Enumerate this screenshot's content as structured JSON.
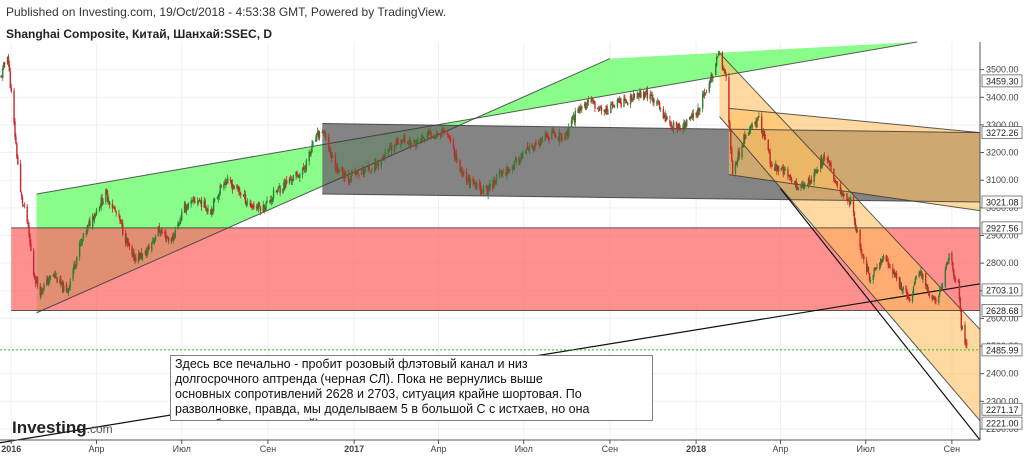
{
  "header": {
    "published": "Published on Investing.com, 19/Oct/2018 - 4:53:38 GMT, Powered by TradingView.",
    "symbol": "Shanghai Composite, Китай, Шанхай:SSEC, D"
  },
  "annotation": {
    "text": "Здесь все печально - пробит розовый флэтовый канал и низ\nдолгосрочного аптренда (черная СЛ). Пока не вернулись выше\nосновных сопротивлений 2628 и 2703, ситуация крайне шортовая. По\nразволновке, правда, мы доделываем 5 в большой С с истхаев, но она\nможет быть удлиненной)."
  },
  "logo": {
    "brand": "Investing",
    "suffix": ".com"
  },
  "colors": {
    "up_candle": "#2e7d32",
    "down_candle": "#c62828",
    "green_channel": "#7cfc7c",
    "pink_channel": "#ff6b6b",
    "gray_channel": "#6e6e6e",
    "orange_channel": "#ffc060",
    "last_price_line": "#22bb22"
  },
  "chart_data": {
    "type": "candlestick",
    "title": "Shanghai Composite, Китай, Шанхай:SSEC, D",
    "y_axis_position": "right",
    "ylim": [
      2160,
      3600
    ],
    "y_ticks": [
      2200,
      2300,
      2400,
      2500,
      2600,
      2700,
      2800,
      2900,
      3000,
      3100,
      3200,
      3300,
      3400,
      3500
    ],
    "y_tick_labels": [
      "2200.00",
      "2300.00",
      "2400.00",
      "2500.00",
      "2600.00",
      "2700.00",
      "2800.00",
      "2900.00",
      "3000.00",
      "3100.00",
      "3200.00",
      "3300.00",
      "3400.00",
      "3500.00"
    ],
    "x_range": [
      "2015-12-20",
      "2018-10-31"
    ],
    "x_ticks": [
      {
        "date": "2016-01-01",
        "label": "2016",
        "bold": true
      },
      {
        "date": "2016-04-01",
        "label": "Апр",
        "bold": false
      },
      {
        "date": "2016-07-01",
        "label": "Июл",
        "bold": false
      },
      {
        "date": "2016-10-01",
        "label": "Сен",
        "bold": false
      },
      {
        "date": "2017-01-01",
        "label": "2017",
        "bold": true
      },
      {
        "date": "2017-04-01",
        "label": "Апр",
        "bold": false
      },
      {
        "date": "2017-07-01",
        "label": "Июл",
        "bold": false
      },
      {
        "date": "2017-10-01",
        "label": "Сен",
        "bold": false
      },
      {
        "date": "2018-01-01",
        "label": "2018",
        "bold": true
      },
      {
        "date": "2018-04-01",
        "label": "Апр",
        "bold": false
      },
      {
        "date": "2018-07-01",
        "label": "Июл",
        "bold": false
      },
      {
        "date": "2018-10-01",
        "label": "Сен",
        "bold": false
      }
    ],
    "price_badges": [
      {
        "value": 3459.3,
        "label": "3459.30"
      },
      {
        "value": 3272.26,
        "label": "3272.26"
      },
      {
        "value": 3021.08,
        "label": "3021.08"
      },
      {
        "value": 2927.56,
        "label": "2927.56"
      },
      {
        "value": 2703.1,
        "label": "2703.10"
      },
      {
        "value": 2628.68,
        "label": "2628.68"
      },
      {
        "value": 2485.99,
        "label": "2485.99",
        "current": true
      },
      {
        "value": 2271.17,
        "label": "2271.17"
      },
      {
        "value": 2221.0,
        "label": "2221.00"
      }
    ],
    "price_path": [
      [
        "2015-12-21",
        3470
      ],
      [
        "2015-12-28",
        3560
      ],
      [
        "2016-01-04",
        3300
      ],
      [
        "2016-01-11",
        3050
      ],
      [
        "2016-01-18",
        2950
      ],
      [
        "2016-01-25",
        2760
      ],
      [
        "2016-02-01",
        2700
      ],
      [
        "2016-02-15",
        2760
      ],
      [
        "2016-02-29",
        2690
      ],
      [
        "2016-03-14",
        2860
      ],
      [
        "2016-03-28",
        2970
      ],
      [
        "2016-04-11",
        3050
      ],
      [
        "2016-04-25",
        2960
      ],
      [
        "2016-05-09",
        2820
      ],
      [
        "2016-05-23",
        2830
      ],
      [
        "2016-06-06",
        2920
      ],
      [
        "2016-06-20",
        2880
      ],
      [
        "2016-07-04",
        3000
      ],
      [
        "2016-07-18",
        3030
      ],
      [
        "2016-08-01",
        2990
      ],
      [
        "2016-08-15",
        3100
      ],
      [
        "2016-08-29",
        3070
      ],
      [
        "2016-09-12",
        3010
      ],
      [
        "2016-09-26",
        3000
      ],
      [
        "2016-10-10",
        3060
      ],
      [
        "2016-10-24",
        3100
      ],
      [
        "2016-11-07",
        3130
      ],
      [
        "2016-11-21",
        3250
      ],
      [
        "2016-11-28",
        3280
      ],
      [
        "2016-12-12",
        3150
      ],
      [
        "2016-12-26",
        3110
      ],
      [
        "2017-01-09",
        3130
      ],
      [
        "2017-01-23",
        3150
      ],
      [
        "2017-02-06",
        3200
      ],
      [
        "2017-02-20",
        3250
      ],
      [
        "2017-03-06",
        3230
      ],
      [
        "2017-03-20",
        3260
      ],
      [
        "2017-04-10",
        3280
      ],
      [
        "2017-04-24",
        3140
      ],
      [
        "2017-05-08",
        3080
      ],
      [
        "2017-05-22",
        3060
      ],
      [
        "2017-06-05",
        3120
      ],
      [
        "2017-06-19",
        3150
      ],
      [
        "2017-07-03",
        3200
      ],
      [
        "2017-07-17",
        3230
      ],
      [
        "2017-07-31",
        3270
      ],
      [
        "2017-08-14",
        3250
      ],
      [
        "2017-08-28",
        3360
      ],
      [
        "2017-09-11",
        3380
      ],
      [
        "2017-09-25",
        3350
      ],
      [
        "2017-10-09",
        3380
      ],
      [
        "2017-10-23",
        3390
      ],
      [
        "2017-11-06",
        3420
      ],
      [
        "2017-11-20",
        3380
      ],
      [
        "2017-12-04",
        3300
      ],
      [
        "2017-12-18",
        3290
      ],
      [
        "2018-01-02",
        3350
      ],
      [
        "2018-01-15",
        3450
      ],
      [
        "2018-01-26",
        3560
      ],
      [
        "2018-02-02",
        3460
      ],
      [
        "2018-02-09",
        3130
      ],
      [
        "2018-02-23",
        3270
      ],
      [
        "2018-03-09",
        3320
      ],
      [
        "2018-03-23",
        3150
      ],
      [
        "2018-04-06",
        3130
      ],
      [
        "2018-04-20",
        3070
      ],
      [
        "2018-05-04",
        3100
      ],
      [
        "2018-05-18",
        3190
      ],
      [
        "2018-05-30",
        3090
      ],
      [
        "2018-06-15",
        3020
      ],
      [
        "2018-06-25",
        2860
      ],
      [
        "2018-07-06",
        2740
      ],
      [
        "2018-07-20",
        2830
      ],
      [
        "2018-08-03",
        2740
      ],
      [
        "2018-08-17",
        2670
      ],
      [
        "2018-08-27",
        2780
      ],
      [
        "2018-09-10",
        2660
      ],
      [
        "2018-09-17",
        2680
      ],
      [
        "2018-09-28",
        2820
      ],
      [
        "2018-10-08",
        2720
      ],
      [
        "2018-10-11",
        2580
      ],
      [
        "2018-10-18",
        2486
      ]
    ],
    "annotations": [
      {
        "name": "green-uptrend-channel",
        "color": "#7cfc7c",
        "lines": [
          [
            [
              "2016-01-28",
              2620
            ],
            [
              "2017-10-01",
              3540
            ]
          ],
          [
            [
              "2016-01-28",
              3050
            ],
            [
              "2018-08-25",
              3600
            ]
          ]
        ]
      },
      {
        "name": "pink-flat-channel",
        "color": "#ff6b6b",
        "lines": [
          [
            [
              "2016-01-01",
              2628.68
            ],
            [
              "2018-10-31",
              2628.68
            ]
          ],
          [
            [
              "2016-01-01",
              2927.56
            ],
            [
              "2018-10-31",
              2927.56
            ]
          ]
        ]
      },
      {
        "name": "gray-flat-channel",
        "color": "#6e6e6e",
        "lines": [
          [
            [
              "2016-11-28",
              3305
            ],
            [
              "2018-10-31",
              3272.26
            ]
          ],
          [
            [
              "2016-11-28",
              3050
            ],
            [
              "2018-10-31",
              3021.08
            ]
          ]
        ]
      },
      {
        "name": "orange-descending-channel",
        "color": "#ffc060",
        "lines": [
          [
            [
              "2018-01-26",
              3560
            ],
            [
              "2018-10-31",
              2560
            ]
          ],
          [
            [
              "2018-01-26",
              3330
            ],
            [
              "2018-10-31",
              2230
            ]
          ]
        ]
      },
      {
        "name": "orange-flat-channel",
        "color": "#ffc060",
        "lines": [
          [
            [
              "2018-02-05",
              3360
            ],
            [
              "2018-10-31",
              3272.26
            ]
          ],
          [
            [
              "2018-02-05",
              3120
            ],
            [
              "2018-10-31",
              2990
            ]
          ]
        ]
      },
      {
        "name": "black-long-term-trendline",
        "color": "#111111",
        "lines": [
          [
            [
              "2015-12-20",
              2150
            ],
            [
              "2018-10-31",
              2725
            ]
          ]
        ]
      },
      {
        "name": "black-inner-channel-line",
        "color": "#111111",
        "lines": [
          [
            [
              "2018-04-01",
              3070
            ],
            [
              "2018-10-31",
              2160
            ]
          ]
        ]
      }
    ]
  }
}
